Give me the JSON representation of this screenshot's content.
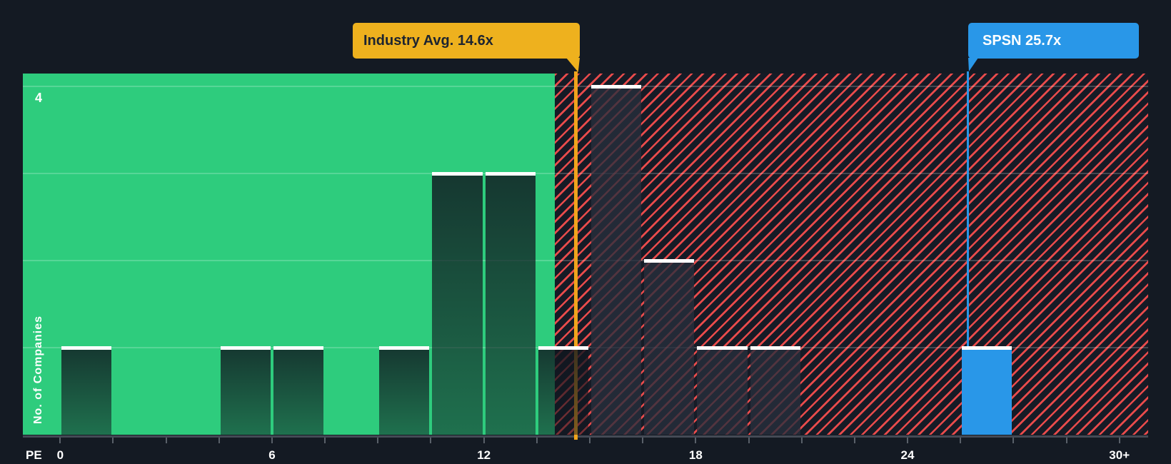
{
  "chart_data": {
    "type": "bar",
    "subtype": "histogram",
    "title": "",
    "xlabel": "PE",
    "ylabel": "No. of Companies",
    "x_axis": {
      "min": 0,
      "max": 30,
      "minor_tick_step": 1.5,
      "labels": [
        {
          "value": 0,
          "text": "0"
        },
        {
          "value": 6,
          "text": "6"
        },
        {
          "value": 12,
          "text": "12"
        },
        {
          "value": 18,
          "text": "18"
        },
        {
          "value": 24,
          "text": "24"
        },
        {
          "value": 30,
          "text": "30+"
        }
      ]
    },
    "y_axis": {
      "gridlines": [
        1,
        2,
        3,
        4
      ],
      "labeled_gridline": 4,
      "labeled_gridline_text": "4",
      "max": 4
    },
    "bars": [
      {
        "pe_from": 0,
        "pe_to": 1.5,
        "count": 1,
        "role": "peer"
      },
      {
        "pe_from": 4.5,
        "pe_to": 6,
        "count": 1,
        "role": "peer"
      },
      {
        "pe_from": 6,
        "pe_to": 7.5,
        "count": 1,
        "role": "peer"
      },
      {
        "pe_from": 9,
        "pe_to": 10.5,
        "count": 1,
        "role": "peer"
      },
      {
        "pe_from": 10.5,
        "pe_to": 12,
        "count": 3,
        "role": "peer"
      },
      {
        "pe_from": 12,
        "pe_to": 13.5,
        "count": 3,
        "role": "peer"
      },
      {
        "pe_from": 13.5,
        "pe_to": 15,
        "count": 1,
        "role": "peer"
      },
      {
        "pe_from": 15,
        "pe_to": 16.5,
        "count": 4,
        "role": "peer"
      },
      {
        "pe_from": 16.5,
        "pe_to": 18,
        "count": 2,
        "role": "peer"
      },
      {
        "pe_from": 18,
        "pe_to": 19.5,
        "count": 1,
        "role": "peer"
      },
      {
        "pe_from": 19.5,
        "pe_to": 21,
        "count": 1,
        "role": "peer"
      },
      {
        "pe_from": 25.5,
        "pe_to": 27,
        "count": 1,
        "role": "company"
      }
    ],
    "zones": {
      "below_average_end_pe": 14.0,
      "below_average_style": "solid-green",
      "above_average_style": "red-diagonal-hatch"
    },
    "annotations": {
      "industry": {
        "label": "Industry Avg. 14.6x",
        "value": 14.6
      },
      "company": {
        "label": "SPSN 25.7x",
        "value": 25.7
      }
    },
    "legend": "none",
    "grid": "horizontal-only"
  },
  "colors": {
    "page_bg": "#141a23",
    "below_zone_green": "#2ecc7d",
    "hatch_bg": "#161b26",
    "hatch_red": "#e94b4b",
    "industry_yellow": "#eeb11e",
    "industry_line": "#f0a41c",
    "industry_text": "#1d2430",
    "company_blue": "#2997e8",
    "bar_cap_white": "#ffffff",
    "axis_text": "#ffffff"
  }
}
